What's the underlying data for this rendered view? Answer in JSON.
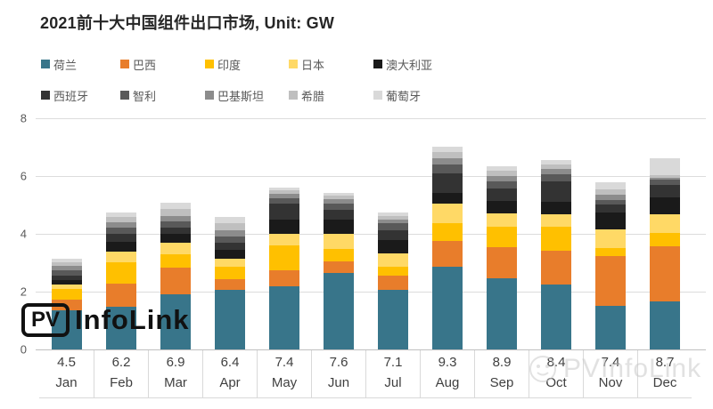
{
  "title": "2021前十大中国组件出口市场, Unit: GW",
  "logo": {
    "badge": "PV",
    "text": "InfoLink"
  },
  "watermark": {
    "text": "PVInfoLink"
  },
  "colors": {
    "background": "#ffffff",
    "gridline": "#dcdcdc",
    "axis_text": "#595959",
    "table_text": "#404040",
    "title_text": "#262626"
  },
  "chart_data": {
    "type": "bar",
    "stacked": true,
    "title": "2021前十大中国组件出口市场",
    "unit": "GW",
    "grid": true,
    "legend_position": "top",
    "ylim": [
      0,
      8
    ],
    "yticks": [
      0,
      2,
      4,
      6,
      8
    ],
    "categories": [
      "Jan",
      "Feb",
      "Mar",
      "Apr",
      "May",
      "Jun",
      "Jul",
      "Aug",
      "Sep",
      "Oct",
      "Nov",
      "Dec"
    ],
    "totals_row": [
      "4.5",
      "6.2",
      "6.9",
      "6.4",
      "7.4",
      "7.6",
      "7.1",
      "9.3",
      "8.9",
      "8.4",
      "7.4",
      "8.7"
    ],
    "series": [
      {
        "name": "荷兰",
        "color": "#38758a",
        "values": [
          1.36,
          1.47,
          1.9,
          2.05,
          2.18,
          2.65,
          2.07,
          2.87,
          2.46,
          2.24,
          1.52,
          1.67
        ]
      },
      {
        "name": "巴西",
        "color": "#e87d2b",
        "values": [
          0.36,
          0.82,
          0.92,
          0.39,
          0.57,
          0.41,
          0.48,
          0.88,
          1.08,
          1.18,
          1.71,
          1.9
        ]
      },
      {
        "name": "印度",
        "color": "#ffc000",
        "values": [
          0.36,
          0.72,
          0.46,
          0.41,
          0.84,
          0.41,
          0.31,
          0.61,
          0.7,
          0.82,
          0.29,
          0.46
        ]
      },
      {
        "name": "日本",
        "color": "#ffd966",
        "values": [
          0.18,
          0.39,
          0.41,
          0.3,
          0.41,
          0.53,
          0.46,
          0.68,
          0.48,
          0.44,
          0.63,
          0.64
        ]
      },
      {
        "name": "澳大利亚",
        "color": "#1a1a1a",
        "values": [
          0.13,
          0.31,
          0.31,
          0.29,
          0.49,
          0.49,
          0.46,
          0.38,
          0.42,
          0.43,
          0.58,
          0.59
        ]
      },
      {
        "name": "西班牙",
        "color": "#333333",
        "values": [
          0.18,
          0.3,
          0.21,
          0.25,
          0.57,
          0.35,
          0.35,
          0.68,
          0.43,
          0.72,
          0.28,
          0.43
        ]
      },
      {
        "name": "智利",
        "color": "#595959",
        "values": [
          0.16,
          0.21,
          0.21,
          0.21,
          0.18,
          0.2,
          0.23,
          0.29,
          0.23,
          0.23,
          0.17,
          0.17
        ]
      },
      {
        "name": "巴基斯坦",
        "color": "#8c8c8c",
        "values": [
          0.16,
          0.18,
          0.21,
          0.23,
          0.15,
          0.15,
          0.14,
          0.23,
          0.2,
          0.18,
          0.19,
          0.09
        ]
      },
      {
        "name": "希腊",
        "color": "#bfbfbf",
        "values": [
          0.13,
          0.18,
          0.22,
          0.23,
          0.11,
          0.13,
          0.11,
          0.2,
          0.18,
          0.15,
          0.17,
          0.09
        ]
      },
      {
        "name": "葡萄牙",
        "color": "#d9d9d9",
        "values": [
          0.12,
          0.17,
          0.23,
          0.22,
          0.1,
          0.1,
          0.11,
          0.19,
          0.16,
          0.15,
          0.24,
          0.56
        ]
      }
    ]
  }
}
